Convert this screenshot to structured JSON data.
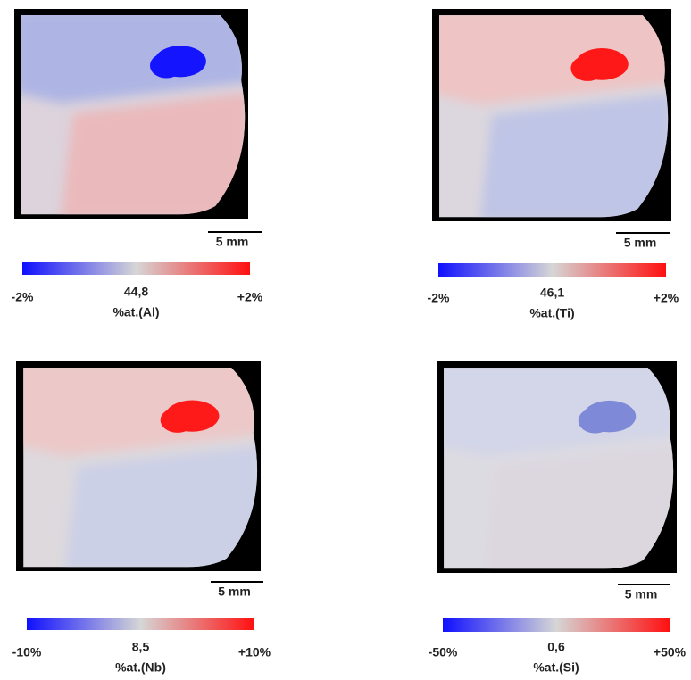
{
  "panels": [
    {
      "scale_bar": "5 mm",
      "min": "-2%",
      "center": "44,8",
      "label": "%at.(Al)",
      "max": "+2%"
    },
    {
      "scale_bar": "5 mm",
      "min": "-2%",
      "center": "46,1",
      "label": "%at.(Ti)",
      "max": "+2%"
    },
    {
      "scale_bar": "5 mm",
      "min": "-10%",
      "center": "8,5",
      "label": "%at.(Nb)",
      "max": "+10%"
    },
    {
      "scale_bar": "5 mm",
      "min": "-50%",
      "center": "0,6",
      "label": "%at.(Si)",
      "max": "+50%"
    }
  ]
}
